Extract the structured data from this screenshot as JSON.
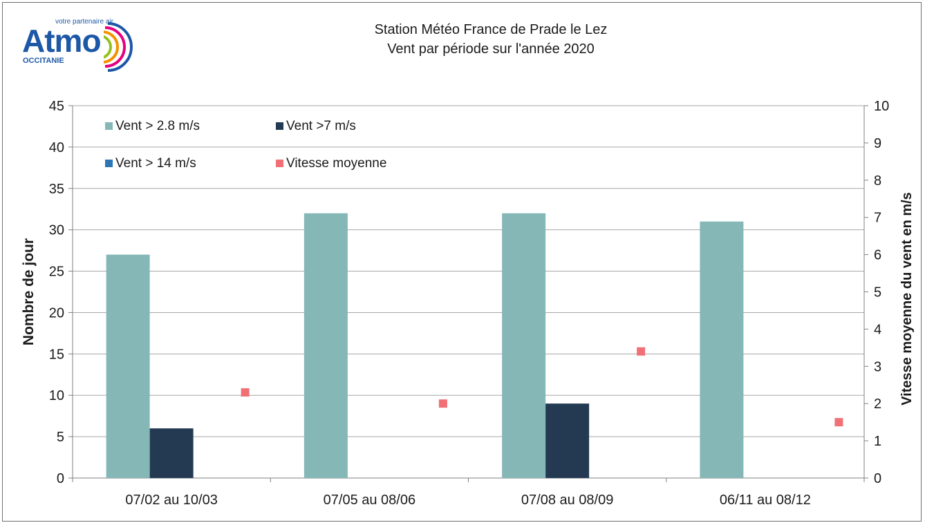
{
  "logo": {
    "name": "Atmo",
    "tagline": "votre partenaire air",
    "region": "OCCITANIE"
  },
  "colors": {
    "series1": "#85b7b7",
    "series2": "#243a52",
    "series3": "#2e75b6",
    "series4": "#f07075",
    "grid": "#a6a6a6",
    "axis": "#7f7f7f"
  },
  "chart_data": {
    "type": "bar",
    "title": "Station Météo France de Prade le Lez",
    "subtitle": "Vent par période sur l'année 2020",
    "categories": [
      "07/02 au 10/03",
      "07/05 au 08/06",
      "07/08 au 08/09",
      "06/11 au 08/12"
    ],
    "series": [
      {
        "name": "Vent > 2.8 m/s",
        "axis": "left",
        "type": "bar",
        "values": [
          27,
          32,
          32,
          31
        ]
      },
      {
        "name": "Vent >7 m/s",
        "axis": "left",
        "type": "bar",
        "values": [
          6,
          0,
          9,
          0
        ]
      },
      {
        "name": "Vent > 14 m/s",
        "axis": "left",
        "type": "bar",
        "values": [
          0,
          0,
          0,
          0
        ]
      },
      {
        "name": "Vitesse moyenne",
        "axis": "right",
        "type": "scatter",
        "values": [
          2.3,
          2.0,
          3.4,
          1.5
        ]
      }
    ],
    "ylabel": "Nombre de jour",
    "y2label": "Vitesse moyenne du vent en m/s",
    "ylim": [
      0,
      45
    ],
    "yticks": [
      0,
      5,
      10,
      15,
      20,
      25,
      30,
      35,
      40,
      45
    ],
    "y2lim": [
      0,
      10
    ],
    "y2ticks": [
      0,
      1,
      2,
      3,
      4,
      5,
      6,
      7,
      8,
      9,
      10
    ],
    "grid": true,
    "legend_position": "top-left"
  }
}
